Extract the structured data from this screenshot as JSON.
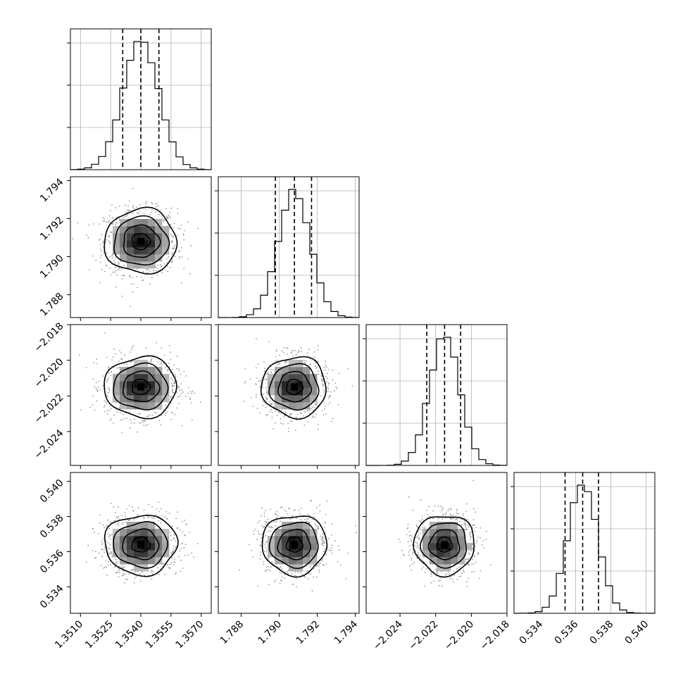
{
  "chart_data": {
    "type": "corner",
    "parameters": [
      {
        "mean": 1.354,
        "sigma": 0.0009,
        "quantiles": [
          1.3531,
          1.354,
          1.3549
        ],
        "range": [
          1.3505,
          1.3575
        ],
        "ticks": [
          1.351,
          1.3525,
          1.354,
          1.3555,
          1.357
        ],
        "tick_labels": [
          "1.3510",
          "1.3525",
          "1.3540",
          "1.3555",
          "1.3570"
        ]
      },
      {
        "mean": 1.7908,
        "sigma": 0.00085,
        "quantiles": [
          1.7898,
          1.7908,
          1.7917
        ],
        "range": [
          1.7868,
          1.7942
        ],
        "ticks": [
          1.788,
          1.79,
          1.792,
          1.794
        ],
        "tick_labels": [
          "1.788",
          "1.790",
          "1.792",
          "1.794"
        ]
      },
      {
        "mean": -2.0215,
        "sigma": 0.00085,
        "quantiles": [
          -2.0225,
          -2.0215,
          -2.0206
        ],
        "range": [
          -2.0259,
          -2.018
        ],
        "ticks": [
          -2.018,
          -2.02,
          -2.022,
          -2.024
        ],
        "tick_labels": [
          "−2.018",
          "−2.020",
          "−2.022",
          "−2.024"
        ],
        "bottom_ticks": [
          -2.024,
          -2.022,
          -2.02,
          -2.018
        ],
        "bottom_tick_labels": [
          "−2.024",
          "−2.022",
          "−2.020",
          "−2.018"
        ]
      },
      {
        "mean": 0.5364,
        "sigma": 0.00085,
        "quantiles": [
          0.5354,
          0.5364,
          0.5373
        ],
        "range": [
          0.5325,
          0.5405
        ],
        "ticks": [
          0.534,
          0.536,
          0.538,
          0.54
        ],
        "tick_labels": [
          "0.534",
          "0.536",
          "0.538",
          "0.540"
        ]
      }
    ],
    "histogram_bins": 20,
    "quantiles_shown": [
      0.16,
      0.5,
      0.84
    ],
    "contour_levels_sigma": [
      0.5,
      1.0,
      1.5,
      2.0
    ],
    "scatter_color": "#9a9a9a",
    "grid": true
  }
}
